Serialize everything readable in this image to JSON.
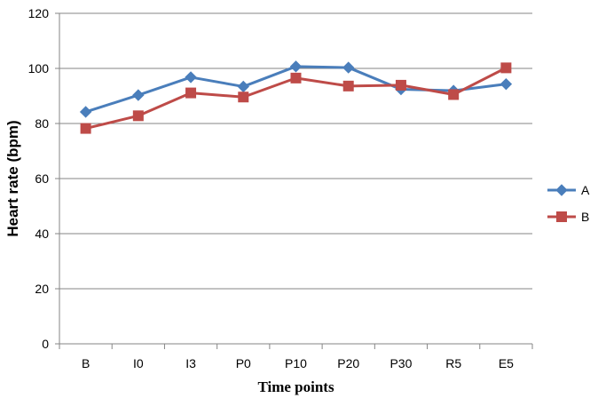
{
  "chart_data": {
    "type": "line",
    "title": "",
    "xlabel": "Time points",
    "ylabel": "Heart rate (bpm)",
    "categories": [
      "B",
      "I0",
      "I3",
      "P0",
      "P10",
      "P20",
      "P30",
      "R5",
      "E5"
    ],
    "ylim": [
      0,
      120
    ],
    "yticks": [
      0,
      20,
      40,
      60,
      80,
      100,
      120
    ],
    "grid": true,
    "legend": "right",
    "series": [
      {
        "name": "A",
        "color": "#4a7ebb",
        "marker": "diamond",
        "values": [
          84.2,
          90.3,
          96.8,
          93.4,
          100.7,
          100.3,
          92.4,
          91.9,
          94.3
        ]
      },
      {
        "name": "B",
        "color": "#be4b48",
        "marker": "square",
        "values": [
          78.2,
          82.8,
          91.1,
          89.6,
          96.5,
          93.6,
          93.9,
          90.5,
          100.2
        ]
      }
    ]
  }
}
